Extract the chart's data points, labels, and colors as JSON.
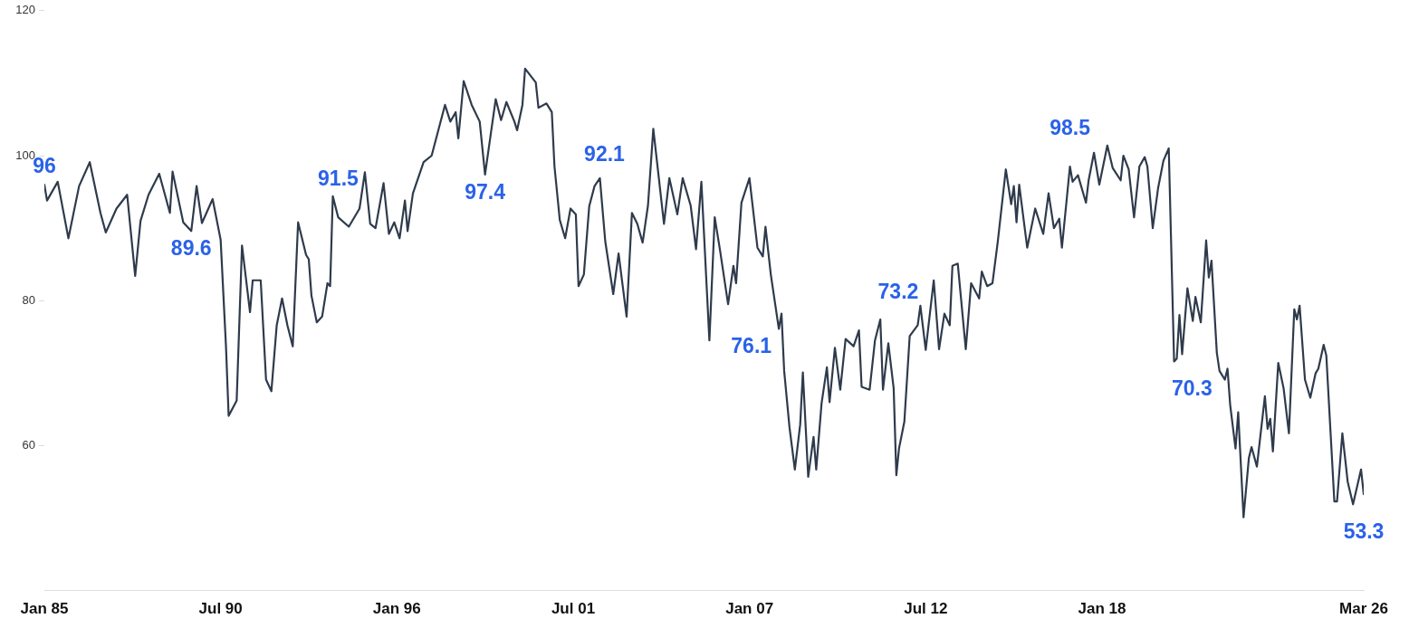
{
  "chart_data": {
    "type": "line",
    "xlim": [
      "1985-01",
      "2026-03"
    ],
    "ylim": [
      40,
      120
    ],
    "yticks": [
      60,
      80,
      100,
      120
    ],
    "xticks": [
      {
        "value": "1985-01",
        "label": "Jan 85"
      },
      {
        "value": "1990-07",
        "label": "Jul 90"
      },
      {
        "value": "1996-01",
        "label": "Jan 96"
      },
      {
        "value": "2001-07",
        "label": "Jul 01"
      },
      {
        "value": "2007-01",
        "label": "Jan 07"
      },
      {
        "value": "2012-07",
        "label": "Jul 12"
      },
      {
        "value": "2018-01",
        "label": "Jan 18"
      },
      {
        "value": "2026-03",
        "label": "Mar 26"
      }
    ],
    "grid": false,
    "marker": "none",
    "line_style": "solid",
    "x": [
      "1985-01",
      "1985-02",
      "1985-06",
      "1985-10",
      "1986-02",
      "1986-06",
      "1986-10",
      "1986-12",
      "1987-04",
      "1987-08",
      "1987-11",
      "1988-01",
      "1988-04",
      "1988-08",
      "1988-12",
      "1989-01",
      "1989-05",
      "1989-08",
      "1989-10",
      "1989-12",
      "1990-04",
      "1990-07",
      "1990-09",
      "1990-10",
      "1991-01",
      "1991-03",
      "1991-06",
      "1991-07",
      "1991-10",
      "1991-12",
      "1992-02",
      "1992-04",
      "1992-06",
      "1992-08",
      "1992-10",
      "1992-12",
      "1993-03",
      "1993-04",
      "1993-05",
      "1993-07",
      "1993-09",
      "1993-11",
      "1993-12",
      "1994-01",
      "1994-03",
      "1994-07",
      "1994-11",
      "1995-01",
      "1995-03",
      "1995-05",
      "1995-08",
      "1995-10",
      "1995-12",
      "1996-02",
      "1996-04",
      "1996-05",
      "1996-07",
      "1996-11",
      "1997-02",
      "1997-07",
      "1997-09",
      "1997-11",
      "1997-12",
      "1998-02",
      "1998-05",
      "1998-08",
      "1998-10",
      "1998-12",
      "1999-02",
      "1999-04",
      "1999-06",
      "1999-09",
      "1999-10",
      "1999-12",
      "2000-01",
      "2000-05",
      "2000-06",
      "2000-09",
      "2000-11",
      "2000-12",
      "2001-02",
      "2001-04",
      "2001-06",
      "2001-08",
      "2001-09",
      "2001-11",
      "2002-01",
      "2002-03",
      "2002-05",
      "2002-07",
      "2002-10",
      "2002-12",
      "2003-03",
      "2003-05",
      "2003-07",
      "2003-09",
      "2003-11",
      "2004-01",
      "2004-05",
      "2004-07",
      "2004-10",
      "2004-12",
      "2005-03",
      "2005-05",
      "2005-07",
      "2005-10",
      "2005-12",
      "2006-02",
      "2006-05",
      "2006-07",
      "2006-08",
      "2006-10",
      "2007-01",
      "2007-04",
      "2007-06",
      "2007-07",
      "2007-09",
      "2007-12",
      "2008-01",
      "2008-02",
      "2008-04",
      "2008-06",
      "2008-08",
      "2008-09",
      "2008-11",
      "2009-01",
      "2009-02",
      "2009-04",
      "2009-06",
      "2009-07",
      "2009-09",
      "2009-11",
      "2010-01",
      "2010-04",
      "2010-06",
      "2010-07",
      "2010-10",
      "2010-12",
      "2011-02",
      "2011-03",
      "2011-05",
      "2011-07",
      "2011-08",
      "2011-09",
      "2011-11",
      "2012-01",
      "2012-04",
      "2012-05",
      "2012-07",
      "2012-10",
      "2012-12",
      "2013-02",
      "2013-04",
      "2013-05",
      "2013-07",
      "2013-10",
      "2013-12",
      "2014-03",
      "2014-04",
      "2014-06",
      "2014-08",
      "2014-10",
      "2015-01",
      "2015-03",
      "2015-04",
      "2015-05",
      "2015-06",
      "2015-09",
      "2015-12",
      "2016-03",
      "2016-05",
      "2016-07",
      "2016-09",
      "2016-10",
      "2017-01",
      "2017-02",
      "2017-04",
      "2017-07",
      "2017-08",
      "2017-10",
      "2017-12",
      "2018-03",
      "2018-05",
      "2018-08",
      "2018-09",
      "2018-11",
      "2019-01",
      "2019-03",
      "2019-05",
      "2019-06",
      "2019-08",
      "2019-10",
      "2019-12",
      "2020-02",
      "2020-04",
      "2020-05",
      "2020-06",
      "2020-07",
      "2020-09",
      "2020-11",
      "2020-12",
      "2021-02",
      "2021-04",
      "2021-05",
      "2021-06",
      "2021-08",
      "2021-09",
      "2021-11",
      "2021-12",
      "2022-01",
      "2022-03",
      "2022-04",
      "2022-06",
      "2022-08",
      "2022-09",
      "2022-11",
      "2023-02",
      "2023-03",
      "2023-04",
      "2023-05",
      "2023-07",
      "2023-09",
      "2023-11",
      "2024-01",
      "2024-02",
      "2024-03",
      "2024-05",
      "2024-07",
      "2024-09",
      "2024-10",
      "2024-12",
      "2025-01",
      "2025-04",
      "2025-05",
      "2025-07",
      "2025-09",
      "2025-11",
      "2026-02",
      "2026-03"
    ],
    "series": [
      {
        "color": "#2f3b4c",
        "values": [
          96.0,
          93.8,
          96.4,
          88.6,
          95.8,
          99.1,
          92.1,
          89.4,
          92.7,
          94.6,
          83.4,
          91.0,
          94.6,
          97.5,
          92.1,
          97.8,
          90.8,
          89.6,
          95.8,
          90.7,
          94.0,
          88.4,
          73.7,
          64.1,
          66.2,
          87.6,
          78.4,
          82.8,
          82.8,
          69.1,
          67.5,
          76.6,
          80.3,
          76.6,
          73.7,
          90.8,
          86.3,
          85.7,
          80.7,
          77.0,
          77.8,
          82.4,
          82.0,
          94.4,
          91.5,
          90.2,
          92.7,
          97.7,
          90.6,
          90.0,
          96.2,
          89.2,
          90.8,
          88.6,
          93.8,
          89.6,
          94.8,
          99.1,
          100.0,
          107.0,
          104.7,
          106.0,
          102.4,
          110.3,
          107.0,
          104.7,
          97.4,
          102.6,
          107.8,
          104.9,
          107.4,
          104.7,
          103.5,
          107.0,
          112.0,
          110.1,
          106.6,
          107.2,
          106.0,
          98.5,
          91.1,
          88.6,
          92.7,
          91.9,
          82.0,
          83.6,
          93.0,
          95.8,
          96.9,
          88.2,
          80.9,
          86.5,
          77.8,
          92.1,
          90.6,
          88.0,
          93.1,
          103.7,
          90.6,
          96.9,
          91.9,
          96.9,
          93.1,
          87.1,
          96.4,
          74.5,
          91.5,
          86.9,
          79.5,
          84.8,
          82.4,
          93.5,
          96.9,
          87.3,
          86.1,
          90.2,
          83.6,
          76.1,
          78.2,
          70.3,
          62.5,
          56.7,
          62.9,
          70.1,
          55.7,
          61.2,
          56.7,
          65.8,
          70.8,
          66.0,
          73.5,
          67.7,
          74.7,
          73.7,
          75.9,
          68.1,
          67.7,
          74.5,
          77.4,
          67.7,
          74.1,
          67.9,
          55.9,
          59.6,
          63.3,
          75.1,
          76.6,
          79.3,
          73.2,
          82.8,
          73.3,
          78.2,
          76.6,
          84.8,
          85.1,
          73.3,
          82.4,
          80.3,
          84.0,
          82.0,
          82.4,
          88.2,
          98.1,
          93.3,
          95.8,
          90.8,
          96.0,
          87.3,
          92.7,
          89.2,
          94.8,
          90.0,
          91.3,
          87.3,
          98.5,
          96.4,
          97.3,
          93.5,
          96.6,
          100.4,
          96.0,
          101.4,
          98.3,
          96.6,
          100.0,
          98.1,
          91.5,
          98.5,
          99.8,
          98.5,
          90.0,
          95.5,
          99.3,
          101.0,
          71.6,
          72.0,
          78.0,
          72.6,
          81.7,
          77.2,
          80.5,
          77.0,
          88.3,
          83.2,
          85.5,
          72.8,
          70.3,
          69.1,
          70.6,
          65.6,
          59.6,
          64.6,
          50.1,
          58.3,
          59.8,
          57.1,
          66.8,
          62.3,
          63.7,
          59.2,
          71.4,
          67.9,
          61.7,
          78.8,
          77.4,
          79.3,
          69.1,
          66.6,
          70.0,
          70.6,
          73.9,
          72.4,
          52.3,
          52.3,
          61.7,
          55.0,
          51.9,
          56.7,
          53.3
        ]
      }
    ],
    "annotations": [
      {
        "text": "96",
        "x": "1985-01",
        "y": 96.0
      },
      {
        "text": "89.6",
        "x": "1989-08",
        "y": 89.6
      },
      {
        "text": "91.5",
        "x": "1994-03",
        "y": 91.5
      },
      {
        "text": "97.4",
        "x": "1998-10",
        "y": 97.4
      },
      {
        "text": "92.1",
        "x": "2003-05",
        "y": 92.1
      },
      {
        "text": "76.1",
        "x": "2007-12",
        "y": 76.1
      },
      {
        "text": "73.2",
        "x": "2012-07",
        "y": 73.2
      },
      {
        "text": "98.5",
        "x": "2017-01",
        "y": 98.5
      },
      {
        "text": "70.3",
        "x": "2021-09",
        "y": 70.3
      },
      {
        "text": "53.3",
        "x": "2026-03",
        "y": 53.3
      }
    ]
  }
}
